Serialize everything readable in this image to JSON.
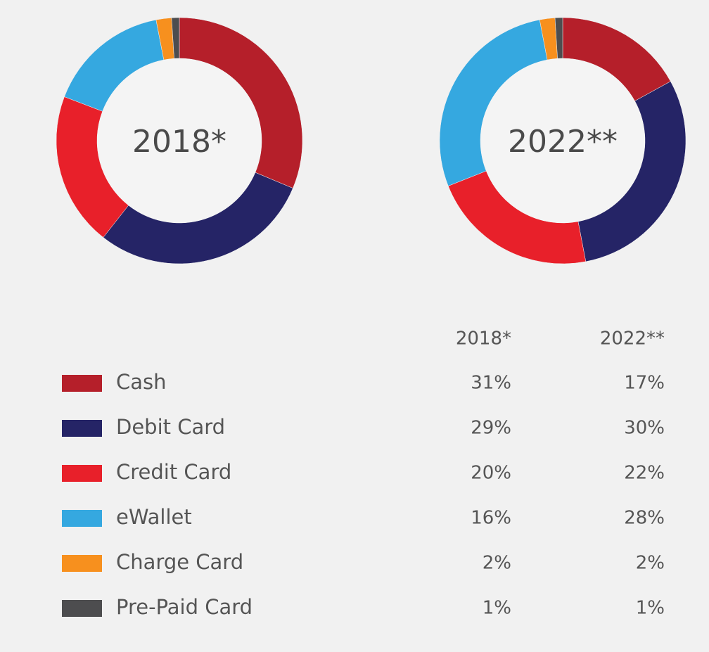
{
  "chart_data": {
    "type": "donut",
    "categories": [
      "Cash",
      "Debit Card",
      "Credit Card",
      "eWallet",
      "Charge Card",
      "Pre-Paid Card"
    ],
    "colors": [
      "#b51f2a",
      "#252466",
      "#e8202a",
      "#35a8e0",
      "#f7901e",
      "#4d4d4f"
    ],
    "series": [
      {
        "name": "2018*",
        "values": [
          31,
          29,
          20,
          16,
          2,
          1
        ],
        "value_labels": [
          "31%",
          "29%",
          "20%",
          "16%",
          "2%",
          "1%"
        ]
      },
      {
        "name": "2022**",
        "values": [
          17,
          30,
          22,
          28,
          2,
          1
        ],
        "value_labels": [
          "17%",
          "30%",
          "22%",
          "28%",
          "2%",
          "1%"
        ]
      }
    ]
  }
}
